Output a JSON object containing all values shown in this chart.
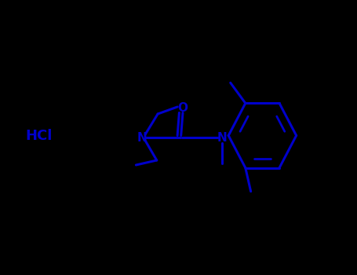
{
  "bg_color": "#000000",
  "line_color": "#0000CC",
  "lw": 2.2,
  "hcl_text": "HCl",
  "o_text": "O",
  "n1_text": "N",
  "n2_text": "N",
  "font_size": 13
}
